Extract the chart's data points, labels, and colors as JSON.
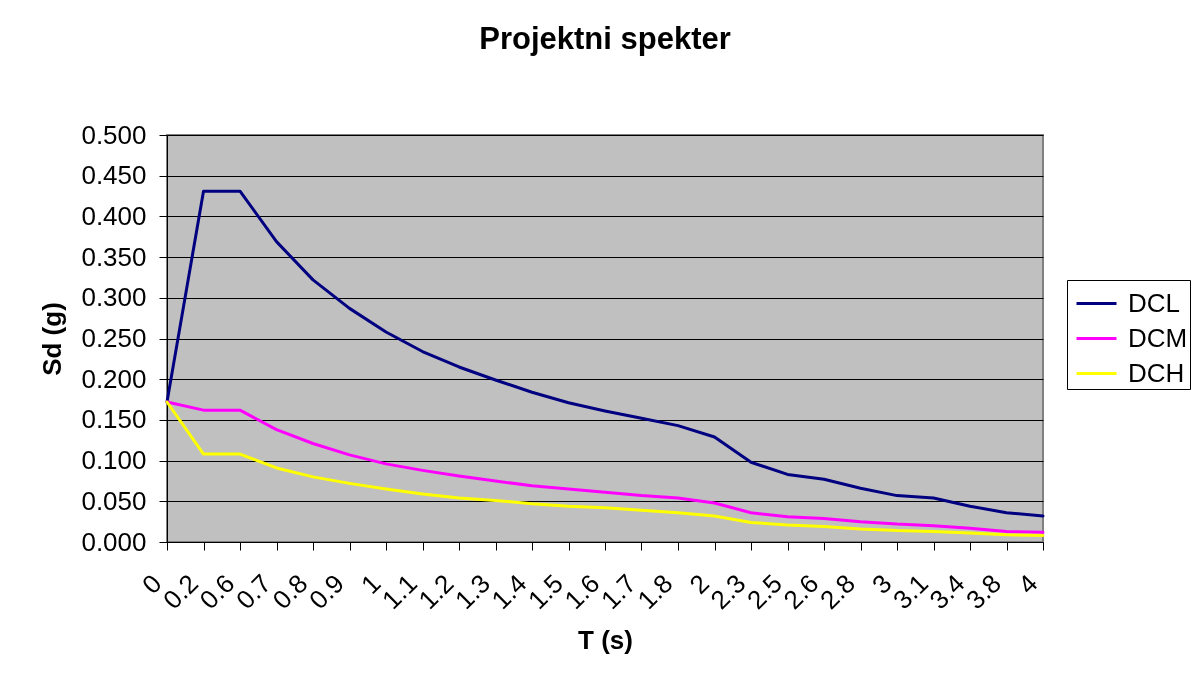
{
  "chart_data": {
    "type": "line",
    "title": "Projektni spekter",
    "xlabel": "T (s)",
    "ylabel": "Sd (g)",
    "categories": [
      "0",
      "0.2",
      "0.6",
      "0.7",
      "0.8",
      "0.9",
      "1",
      "1.1",
      "1.2",
      "1.3",
      "1.4",
      "1.5",
      "1.6",
      "1.7",
      "1.8",
      "2",
      "2.3",
      "2.5",
      "2.6",
      "2.8",
      "3",
      "3.1",
      "3.4",
      "3.8",
      "4"
    ],
    "series": [
      {
        "name": "DCL",
        "color": "#000080",
        "values": [
          0.172,
          0.431,
          0.431,
          0.369,
          0.322,
          0.287,
          0.258,
          0.234,
          0.215,
          0.199,
          0.184,
          0.171,
          0.161,
          0.152,
          0.143,
          0.129,
          0.098,
          0.083,
          0.077,
          0.066,
          0.057,
          0.054,
          0.044,
          0.036,
          0.032
        ]
      },
      {
        "name": "DCM",
        "color": "#ff00ff",
        "values": [
          0.172,
          0.162,
          0.162,
          0.138,
          0.121,
          0.107,
          0.096,
          0.088,
          0.081,
          0.075,
          0.069,
          0.065,
          0.061,
          0.057,
          0.054,
          0.048,
          0.036,
          0.031,
          0.029,
          0.025,
          0.022,
          0.02,
          0.017,
          0.013,
          0.012
        ]
      },
      {
        "name": "DCH",
        "color": "#ffff00",
        "values": [
          0.172,
          0.108,
          0.108,
          0.091,
          0.08,
          0.072,
          0.065,
          0.059,
          0.054,
          0.051,
          0.047,
          0.044,
          0.042,
          0.039,
          0.036,
          0.032,
          0.024,
          0.021,
          0.019,
          0.016,
          0.014,
          0.013,
          0.011,
          0.009,
          0.008
        ]
      }
    ],
    "ylim": [
      0,
      0.5
    ],
    "yticks": [
      {
        "value": 0,
        "label": "0.000"
      },
      {
        "value": 0.05,
        "label": "0.050"
      },
      {
        "value": 0.1,
        "label": "0.100"
      },
      {
        "value": 0.15,
        "label": "0.150"
      },
      {
        "value": 0.2,
        "label": "0.200"
      },
      {
        "value": 0.25,
        "label": "0.250"
      },
      {
        "value": 0.3,
        "label": "0.300"
      },
      {
        "value": 0.35,
        "label": "0.350"
      },
      {
        "value": 0.4,
        "label": "0.400"
      },
      {
        "value": 0.45,
        "label": "0.450"
      },
      {
        "value": 0.5,
        "label": "0.500"
      }
    ],
    "grid": "y",
    "legend": "right",
    "line_style": "solid"
  }
}
